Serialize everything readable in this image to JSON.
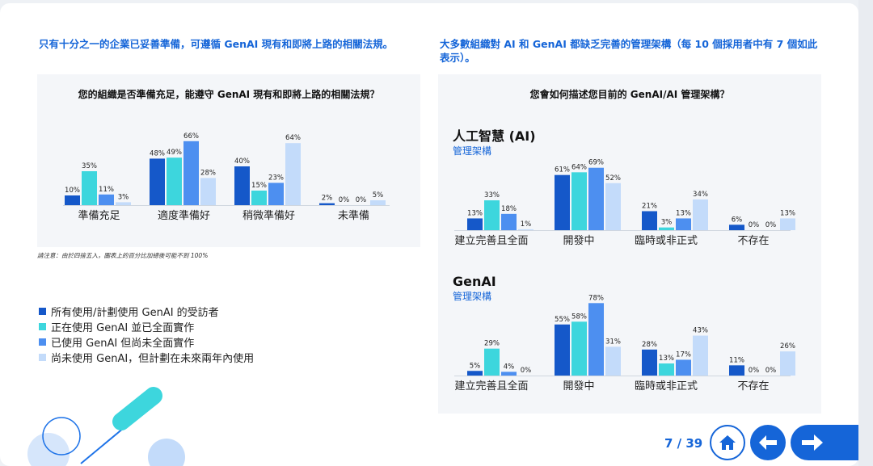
{
  "colors": {
    "heading": "#1565d8",
    "series": [
      "#1558c9",
      "#3dd6dd",
      "#4d8ff0",
      "#c3dbfa"
    ]
  },
  "left": {
    "heading": "只有十分之一的企業已妥善準備，可遵循 GenAI 現有和即將上路的相關法規。",
    "note": "請注意：由於四捨五入，圖表上的百分比加總後可能不到 100%"
  },
  "right": {
    "heading_line1": "大多數組織對 AI 和 GenAI 都缺乏完善的管理架構（每 10 個採用者中有 7 個如此",
    "heading_line2": "表示）。"
  },
  "legend": [
    "所有使用/計劃使用 GenAI 的受訪者",
    "正在使用 GenAI 並已全面實作",
    "已使用 GenAI 但尚未全面實作",
    "尚未使用 GenAI，但計劃在未來兩年內使用"
  ],
  "pagination": {
    "label": "7 / 39"
  },
  "chart_data": [
    {
      "type": "bar",
      "title": "您的組織是否準備充足，能遵守 GenAI 現有和即將上路的相關法規？",
      "categories": [
        "準備充足",
        "適度準備好",
        "稍微準備好",
        "未準備"
      ],
      "series": [
        {
          "name": "所有使用/計劃使用 GenAI 的受訪者",
          "values": [
            10,
            48,
            40,
            2
          ]
        },
        {
          "name": "正在使用 GenAI 並已全面實作",
          "values": [
            35,
            49,
            15,
            0
          ]
        },
        {
          "name": "已使用 GenAI 但尚未全面實作",
          "values": [
            11,
            66,
            23,
            0
          ]
        },
        {
          "name": "尚未使用 GenAI，但計劃在未來兩年內使用",
          "values": [
            3,
            28,
            64,
            5
          ]
        }
      ],
      "unit": "%"
    },
    {
      "type": "bar",
      "title": "您會如何描述您目前的 GenAI/AI 管理架構？",
      "subtitle": "人工智慧 (AI)",
      "subtitle2": "管理架構",
      "categories": [
        "建立完善且全面",
        "開發中",
        "臨時或非正式",
        "不存在"
      ],
      "series": [
        {
          "name": "所有使用/計劃使用 GenAI 的受訪者",
          "values": [
            13,
            61,
            21,
            6
          ]
        },
        {
          "name": "正在使用 GenAI 並已全面實作",
          "values": [
            33,
            64,
            3,
            0
          ]
        },
        {
          "name": "已使用 GenAI 但尚未全面實作",
          "values": [
            18,
            69,
            13,
            0
          ]
        },
        {
          "name": "尚未使用 GenAI，但計劃在未來兩年內使用",
          "values": [
            1,
            52,
            34,
            13
          ]
        }
      ],
      "unit": "%"
    },
    {
      "type": "bar",
      "subtitle": "GenAI",
      "subtitle2": "管理架構",
      "categories": [
        "建立完善且全面",
        "開發中",
        "臨時或非正式",
        "不存在"
      ],
      "series": [
        {
          "name": "所有使用/計劃使用 GenAI 的受訪者",
          "values": [
            5,
            55,
            28,
            11
          ]
        },
        {
          "name": "正在使用 GenAI 並已全面實作",
          "values": [
            29,
            58,
            13,
            0
          ]
        },
        {
          "name": "已使用 GenAI 但尚未全面實作",
          "values": [
            4,
            78,
            17,
            0
          ]
        },
        {
          "name": "尚未使用 GenAI，但計劃在未來兩年內使用",
          "values": [
            0,
            31,
            43,
            26
          ]
        }
      ],
      "unit": "%"
    }
  ]
}
